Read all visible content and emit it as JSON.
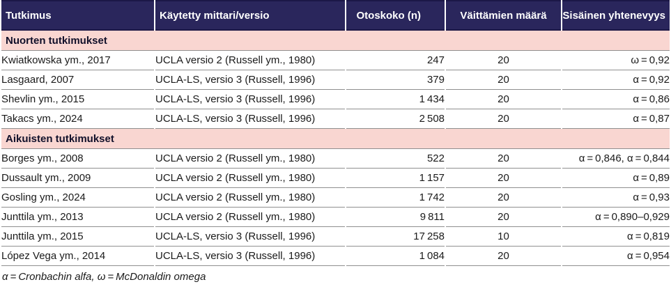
{
  "colors": {
    "header_bg": "#2a265c",
    "header_text": "#ffffff",
    "header_edge": "#1c1847",
    "section_bg": "#f9d6d1",
    "section_text": "#11102a",
    "row_border": "#8f8f8f",
    "body_text": "#1a1a1a",
    "page_bg": "#ffffff"
  },
  "table": {
    "columns": [
      {
        "label": "Tutkimus"
      },
      {
        "label": "Käytetty mittari/versio"
      },
      {
        "label": "Otoskoko (n)"
      },
      {
        "label": "Väittämien määrä"
      },
      {
        "label": "Sisäinen yhtenevyys"
      }
    ],
    "sections": [
      {
        "title": "Nuorten tutkimukset",
        "rows": [
          {
            "study": "Kwiatkowska ym., 2017",
            "measure": "UCLA versio 2 (Russell ym., 1980)",
            "n": "247",
            "items": "20",
            "consistency": "ω = 0,92"
          },
          {
            "study": "Lasgaard, 2007",
            "measure": "UCLA-LS, versio 3 (Russell, 1996)",
            "n": "379",
            "items": "20",
            "consistency": "α = 0,92"
          },
          {
            "study": "Shevlin ym., 2015",
            "measure": "UCLA-LS, versio 3 (Russell, 1996)",
            "n": "1 434",
            "items": "20",
            "consistency": "α = 0,86"
          },
          {
            "study": "Takacs ym., 2024",
            "measure": "UCLA-LS, versio 3 (Russell, 1996)",
            "n": "2 508",
            "items": "20",
            "consistency": "α = 0,87"
          }
        ]
      },
      {
        "title": "Aikuisten tutkimukset",
        "rows": [
          {
            "study": "Borges ym., 2008",
            "measure": "UCLA versio 2 (Russell ym., 1980)",
            "n": "522",
            "items": "20",
            "consistency": "α = 0,846, α = 0,844"
          },
          {
            "study": "Dussault ym., 2009",
            "measure": "UCLA versio 2 (Russell ym., 1980)",
            "n": "1 157",
            "items": "20",
            "consistency": "α = 0,89"
          },
          {
            "study": "Gosling ym., 2024",
            "measure": "UCLA versio 2 (Russell ym., 1980)",
            "n": "1 742",
            "items": "20",
            "consistency": "α = 0,93"
          },
          {
            "study": "Junttila ym., 2013",
            "measure": "UCLA versio 2 (Russell ym., 1980)",
            "n": "9 811",
            "items": "20",
            "consistency": "α = 0,890–0,929"
          },
          {
            "study": "Junttila ym., 2015",
            "measure": "UCLA-LS, versio 3 (Russell, 1996)",
            "n": "17 258",
            "items": "10",
            "consistency": "α = 0,819"
          },
          {
            "study": "López Vega ym., 2014",
            "measure": "UCLA-LS, versio 3 (Russell, 1996)",
            "n": "1 084",
            "items": "20",
            "consistency": "α = 0,954"
          }
        ]
      }
    ],
    "footnote": "α = Cronbachin alfa, ω = McDonaldin omega"
  }
}
